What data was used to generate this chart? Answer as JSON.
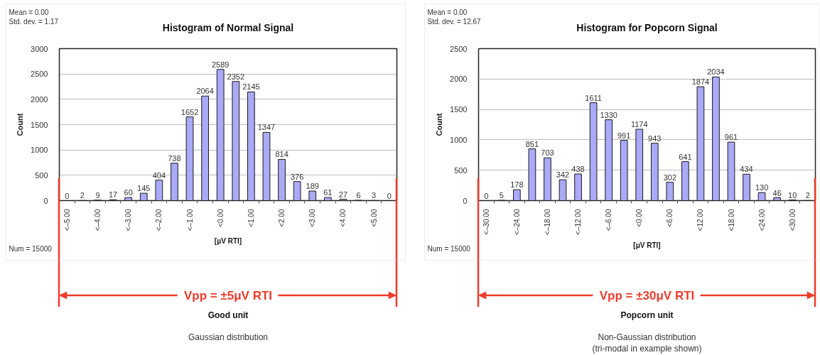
{
  "chart_data": [
    {
      "type": "bar",
      "title": "Histogram of Normal Signal",
      "xlabel": "[μV RTI]",
      "ylabel": "Count",
      "categories": [
        "<–5.00",
        null,
        "<–4.00",
        null,
        "<–3.00",
        null,
        "<–2.00",
        null,
        "<–1.00",
        null,
        "<0.00",
        null,
        "<1.00",
        null,
        "<2.00",
        null,
        "<3.00",
        null,
        "<4.00",
        null,
        "<5.00",
        null
      ],
      "values": [
        0,
        2,
        9,
        17,
        60,
        145,
        404,
        738,
        1652,
        2064,
        2589,
        2352,
        2145,
        1347,
        814,
        376,
        189,
        61,
        27,
        6,
        3,
        0
      ],
      "color": "#aaaaf8",
      "ylim": [
        0,
        3000
      ],
      "yticks": [
        0,
        500,
        1000,
        1500,
        2000,
        2500,
        3000
      ],
      "grid": "y",
      "data_labels": true,
      "annotations": [
        "Mean = 0.00",
        "Std. dev. = 1.17",
        "Num = 15000",
        "Vpp = ±5μV RTI",
        "Good unit",
        "Gaussian distribution"
      ]
    },
    {
      "type": "bar",
      "title": "Histogram for Popcorn Signal",
      "xlabel": "[μV RTI]",
      "ylabel": "Count",
      "categories": [
        "<–30.00",
        null,
        "<–24.00",
        null,
        "<–18.00",
        null,
        "<–12.00",
        null,
        "<–6.00",
        null,
        "<0.00",
        null,
        "<6.00",
        null,
        "<12.00",
        null,
        "<18.00",
        null,
        "<24.00",
        null,
        "<30.00",
        null
      ],
      "values": [
        0,
        5,
        178,
        851,
        703,
        342,
        438,
        1611,
        1330,
        991,
        1174,
        943,
        302,
        641,
        1874,
        2034,
        961,
        434,
        130,
        46,
        10,
        2
      ],
      "color": "#aaaaf8",
      "ylim": [
        0,
        2500
      ],
      "yticks": [
        0,
        500,
        1000,
        1500,
        2000,
        2500
      ],
      "grid": "y",
      "data_labels": true,
      "annotations": [
        "Mean = 0.00",
        "Std. dev. = 12.67",
        "Num = 15000",
        "Vpp = ±30μV RTI",
        "Popcorn unit",
        "Non-Gaussian distribution",
        "(tri-modal in example shown)"
      ]
    }
  ]
}
